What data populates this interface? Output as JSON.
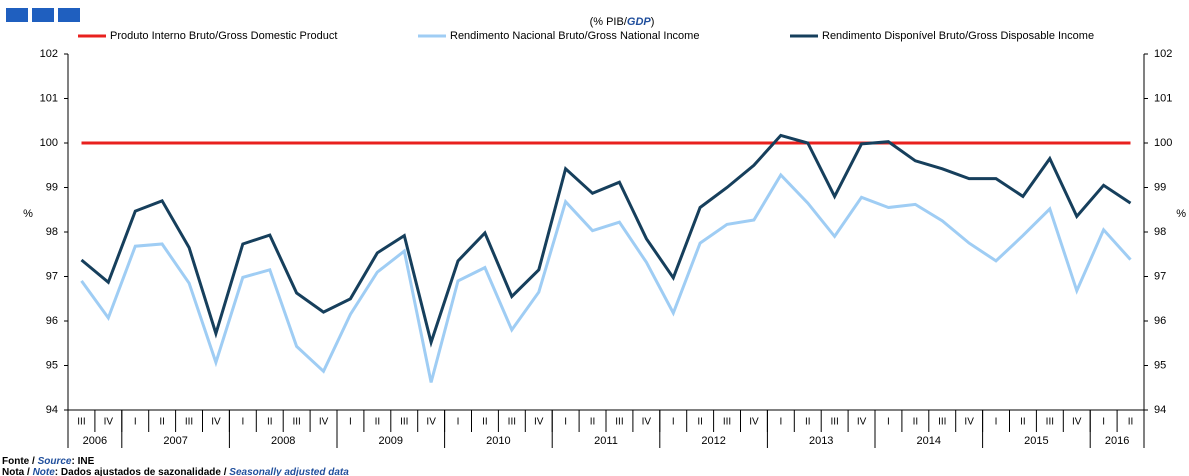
{
  "chart_data": {
    "type": "line",
    "subtitle_parts": [
      "(% PIB/",
      "GDP",
      ")"
    ],
    "y_label": "%",
    "y2_label": "%",
    "categories": [
      "III",
      "IV",
      "I",
      "II",
      "III",
      "IV",
      "I",
      "II",
      "III",
      "IV",
      "I",
      "II",
      "III",
      "IV",
      "I",
      "II",
      "III",
      "IV",
      "I",
      "II",
      "III",
      "IV",
      "I",
      "II",
      "III",
      "IV",
      "I",
      "II",
      "III",
      "IV",
      "I",
      "II",
      "III",
      "IV",
      "I",
      "II",
      "III",
      "IV",
      "I",
      "II"
    ],
    "years": [
      "2006",
      "2007",
      "2008",
      "2009",
      "2010",
      "2011",
      "2012",
      "2013",
      "2014",
      "2015",
      "2016"
    ],
    "series": [
      {
        "name": "Produto Interno Bruto/Gross Domestic Product",
        "color": "#e8201e",
        "values": [
          100,
          100,
          100,
          100,
          100,
          100,
          100,
          100,
          100,
          100,
          100,
          100,
          100,
          100,
          100,
          100,
          100,
          100,
          100,
          100,
          100,
          100,
          100,
          100,
          100,
          100,
          100,
          100,
          100,
          100,
          100,
          100,
          100,
          100,
          100,
          100,
          100,
          100,
          100,
          100
        ]
      },
      {
        "name": "Rendimento Nacional Bruto/Gross National Income",
        "color": "#9fcdf4",
        "values": [
          96.9,
          96.07,
          97.68,
          97.73,
          96.85,
          95.07,
          96.98,
          97.15,
          95.43,
          94.87,
          96.15,
          97.1,
          97.57,
          94.62,
          96.9,
          97.2,
          95.8,
          96.65,
          98.68,
          98.03,
          98.22,
          97.32,
          96.18,
          97.75,
          98.17,
          98.27,
          99.28,
          98.65,
          97.9,
          98.78,
          98.55,
          98.62,
          98.25,
          97.75,
          97.35,
          97.92,
          98.52,
          96.68,
          98.05,
          97.38
        ]
      },
      {
        "name": "Rendimento Disponível Bruto/Gross Disposable Income",
        "color": "#163f5c",
        "values": [
          97.37,
          96.87,
          98.47,
          98.7,
          97.65,
          95.72,
          97.73,
          97.93,
          96.63,
          96.2,
          96.5,
          97.53,
          97.92,
          95.52,
          97.35,
          97.98,
          96.55,
          97.15,
          99.42,
          98.87,
          99.12,
          97.85,
          96.97,
          98.55,
          99.0,
          99.5,
          100.17,
          100.0,
          98.8,
          99.98,
          100.03,
          99.6,
          99.42,
          99.2,
          99.2,
          98.8,
          99.65,
          98.35,
          99.05,
          98.65
        ]
      }
    ],
    "ylim": [
      94,
      102
    ],
    "yticks": [
      94,
      95,
      96,
      97,
      98,
      99,
      100,
      101,
      102
    ],
    "y2lim": [
      94,
      102
    ],
    "y2ticks": [
      94,
      95,
      96,
      97,
      98,
      99,
      100,
      101,
      102
    ],
    "footer": [
      [
        "Fonte / ",
        "Source",
        ":  INE"
      ],
      [
        "Nota / ",
        "Note",
        ":  Dados ajustados de sazonalidade / ",
        "Seasonally adjusted data"
      ]
    ]
  }
}
